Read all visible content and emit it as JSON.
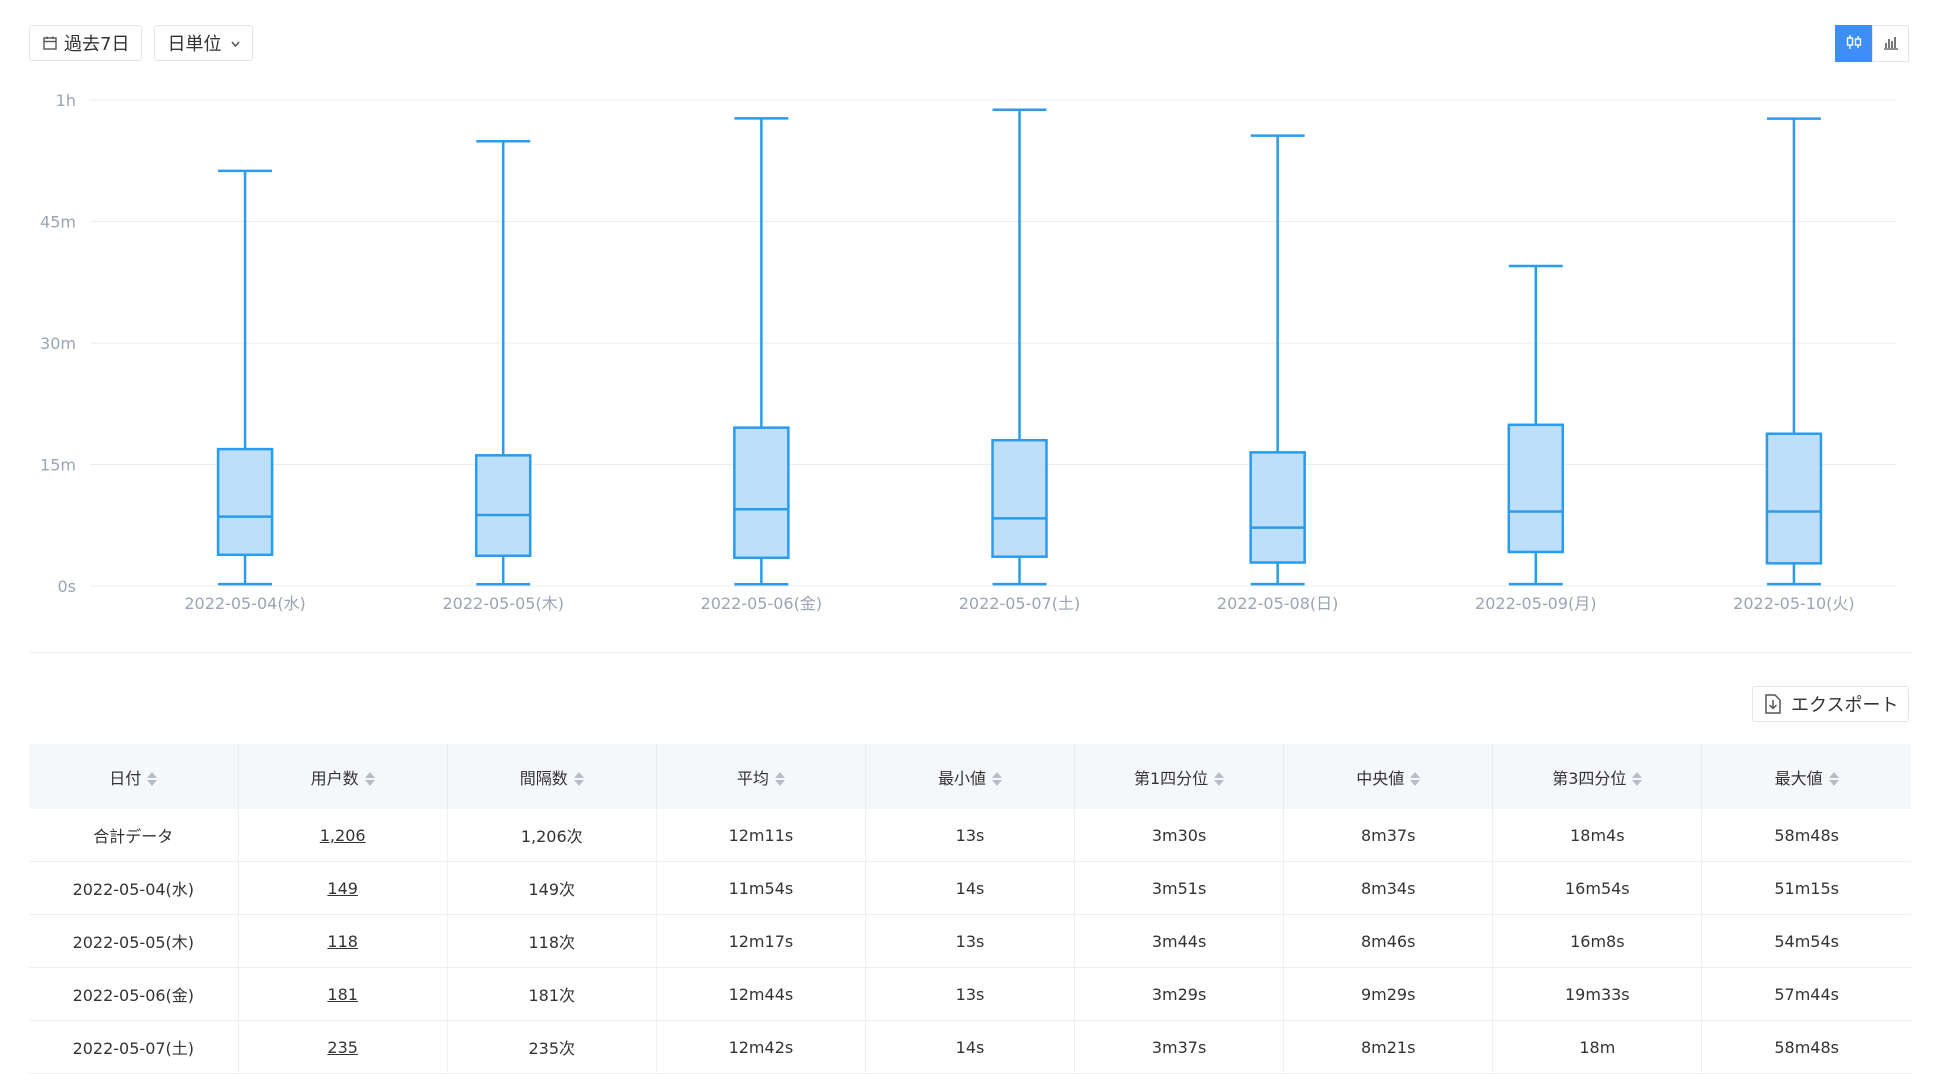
{
  "toolbar": {
    "date_range_label": "過去7日",
    "granularity_label": "日単位"
  },
  "export_label": "エクスポート",
  "chart_data": {
    "type": "boxplot",
    "y_unit": "minutes",
    "ylim": [
      0,
      60
    ],
    "y_ticks": [
      0,
      15,
      30,
      45,
      60
    ],
    "y_tick_labels": [
      "0s",
      "15m",
      "30m",
      "45m",
      "1h"
    ],
    "grid": true,
    "categories": [
      "2022-05-04(水)",
      "2022-05-05(木)",
      "2022-05-06(金)",
      "2022-05-07(土)",
      "2022-05-08(日)",
      "2022-05-09(月)",
      "2022-05-10(火)"
    ],
    "boxes": [
      {
        "min": 0.233,
        "q1": 3.85,
        "median": 8.567,
        "q3": 16.9,
        "max": 51.25
      },
      {
        "min": 0.217,
        "q1": 3.733,
        "median": 8.767,
        "q3": 16.133,
        "max": 54.9
      },
      {
        "min": 0.217,
        "q1": 3.483,
        "median": 9.483,
        "q3": 19.55,
        "max": 57.733
      },
      {
        "min": 0.233,
        "q1": 3.617,
        "median": 8.35,
        "q3": 18.0,
        "max": 58.8
      },
      {
        "min": 0.233,
        "q1": 2.9,
        "median": 7.2,
        "q3": 16.5,
        "max": 55.6
      },
      {
        "min": 0.233,
        "q1": 4.2,
        "median": 9.2,
        "q3": 19.9,
        "max": 39.5
      },
      {
        "min": 0.233,
        "q1": 2.8,
        "median": 9.2,
        "q3": 18.8,
        "max": 57.7
      }
    ],
    "colors": {
      "stroke": "#2a9bed",
      "fill": "#bddff9",
      "grid": "#ebedf0",
      "tick": "#9aa4b2"
    }
  },
  "table": {
    "headers": [
      "日付",
      "用户数",
      "間隔数",
      "平均",
      "最小値",
      "第1四分位",
      "中央値",
      "第3四分位",
      "最大値"
    ],
    "rows": [
      [
        "合計データ",
        "1,206",
        "1,206次",
        "12m11s",
        "13s",
        "3m30s",
        "8m37s",
        "18m4s",
        "58m48s"
      ],
      [
        "2022-05-04(水)",
        "149",
        "149次",
        "11m54s",
        "14s",
        "3m51s",
        "8m34s",
        "16m54s",
        "51m15s"
      ],
      [
        "2022-05-05(木)",
        "118",
        "118次",
        "12m17s",
        "13s",
        "3m44s",
        "8m46s",
        "16m8s",
        "54m54s"
      ],
      [
        "2022-05-06(金)",
        "181",
        "181次",
        "12m44s",
        "13s",
        "3m29s",
        "9m29s",
        "19m33s",
        "57m44s"
      ],
      [
        "2022-05-07(土)",
        "235",
        "235次",
        "12m42s",
        "14s",
        "3m37s",
        "8m21s",
        "18m",
        "58m48s"
      ]
    ]
  }
}
